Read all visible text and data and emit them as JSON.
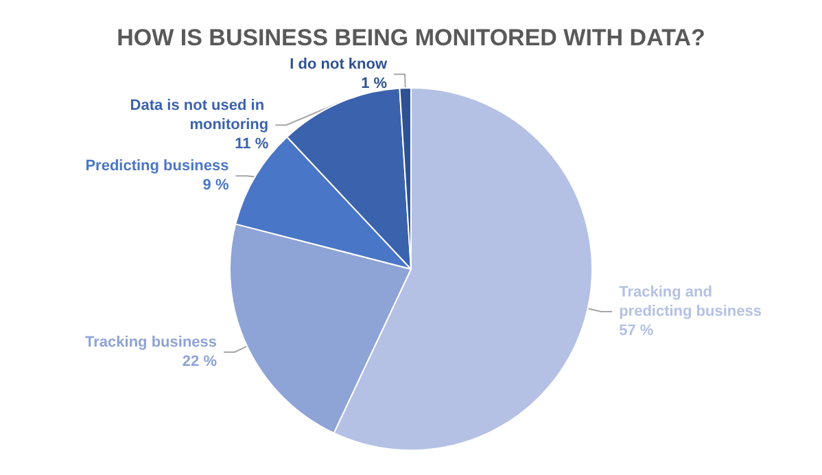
{
  "chart_data": {
    "type": "pie",
    "title": "HOW IS BUSINESS BEING MONITORED WITH DATA?",
    "categories": [
      "Tracking and predicting business",
      "Tracking business",
      "Predicting business",
      "Data is not used in monitoring",
      "I do not know"
    ],
    "values": [
      57,
      22,
      9,
      11,
      1
    ],
    "colors": [
      "#b4c1e4",
      "#8ea3d6",
      "#4a76c8",
      "#3b62ad",
      "#2e5194"
    ],
    "value_labels": [
      "57 %",
      "22 %",
      "9 %",
      "11 %",
      "1 %"
    ],
    "legend": false
  }
}
